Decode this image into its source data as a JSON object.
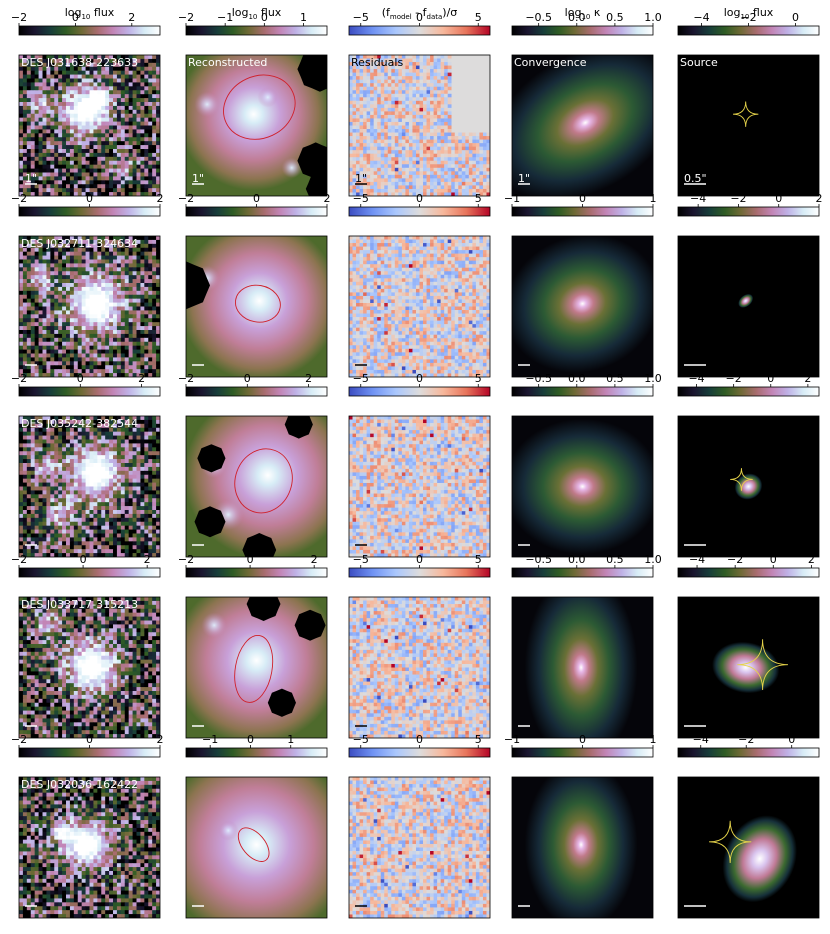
{
  "figure": {
    "column_titles": [
      "log₁₀ flux",
      "log₁₀ flux",
      "(fₘₒᵈₑₗ - fᵈₐₜₐ)/σ",
      "log₁₀ κ",
      "log₁₀ flux"
    ],
    "column_title_parts": [
      {
        "main": "log",
        "sub": "10",
        "tail": " flux"
      },
      {
        "main": "log",
        "sub": "10",
        "tail": " flux"
      },
      {
        "main": "(f",
        "sub": "model",
        "mid": " - f",
        "sub2": "data",
        "tail": ")/σ"
      },
      {
        "main": "log",
        "sub": "10",
        "tail": " κ"
      },
      {
        "main": "log",
        "sub": "10",
        "tail": " flux"
      }
    ],
    "panel_labels": [
      "Reconstructed",
      "Residuals",
      "Convergence",
      "Source"
    ],
    "scale_labels": [
      "1\"",
      "1\"",
      "1\"",
      "1\"",
      "0.5\""
    ],
    "rows": [
      {
        "name": "DES J031638-223633",
        "colorbars": [
          {
            "ticks": [
              "−2",
              "0",
              "2"
            ],
            "min": -2,
            "max": 3,
            "vals": [
              -2,
              0,
              2
            ]
          },
          {
            "ticks": [
              "−2",
              "−1",
              "0",
              "1"
            ],
            "min": -2,
            "max": 1.6,
            "vals": [
              -2,
              -1,
              0,
              1
            ]
          },
          {
            "ticks": [
              "−5",
              "0",
              "5"
            ],
            "min": -6,
            "max": 6,
            "vals": [
              -5,
              0,
              5
            ]
          },
          {
            "ticks": [
              "−0.5",
              "0.0",
              "0.5",
              "1.0"
            ],
            "min": -0.85,
            "max": 1,
            "vals": [
              -0.5,
              0,
              0.5,
              1
            ]
          },
          {
            "ticks": [
              "−4",
              "−2",
              "0"
            ],
            "min": -5,
            "max": 1,
            "vals": [
              -4,
              -2,
              0
            ]
          }
        ]
      },
      {
        "name": "DES J032711-324634",
        "colorbars": [
          {
            "ticks": [
              "−2",
              "0",
              "2"
            ],
            "min": -2,
            "max": 2,
            "vals": [
              -2,
              0,
              2
            ]
          },
          {
            "ticks": [
              "−2",
              "0",
              "2"
            ],
            "min": -2,
            "max": 2,
            "vals": [
              -2,
              0,
              2
            ]
          },
          {
            "ticks": [
              "−5",
              "0",
              "5"
            ],
            "min": -6,
            "max": 6,
            "vals": [
              -5,
              0,
              5
            ]
          },
          {
            "ticks": [
              "−1",
              "0",
              "1"
            ],
            "min": -1,
            "max": 1,
            "vals": [
              -1,
              0,
              1
            ]
          },
          {
            "ticks": [
              "−4",
              "−2",
              "0",
              "2"
            ],
            "min": -5,
            "max": 2,
            "vals": [
              -4,
              -2,
              0,
              2
            ]
          }
        ]
      },
      {
        "name": "DES J035242-382544",
        "colorbars": [
          {
            "ticks": [
              "−2",
              "0",
              "2"
            ],
            "min": -2,
            "max": 2.6,
            "vals": [
              -2,
              0,
              2
            ]
          },
          {
            "ticks": [
              "−2",
              "0",
              "2"
            ],
            "min": -2,
            "max": 2.6,
            "vals": [
              -2,
              0,
              2
            ]
          },
          {
            "ticks": [
              "−5",
              "0",
              "5"
            ],
            "min": -6,
            "max": 6,
            "vals": [
              -5,
              0,
              5
            ]
          },
          {
            "ticks": [
              "−0.5",
              "0.0",
              "0.5",
              "1.0"
            ],
            "min": -0.85,
            "max": 1,
            "vals": [
              -0.5,
              0,
              0.5,
              1
            ]
          },
          {
            "ticks": [
              "−4",
              "−2",
              "0",
              "2"
            ],
            "min": -5,
            "max": 2.6,
            "vals": [
              -4,
              -2,
              0,
              2
            ]
          }
        ]
      },
      {
        "name": "DES J033717-315213",
        "colorbars": [
          {
            "ticks": [
              "−2",
              "0",
              "2"
            ],
            "min": -2,
            "max": 2.4,
            "vals": [
              -2,
              0,
              2
            ]
          },
          {
            "ticks": [
              "−2",
              "0",
              "2"
            ],
            "min": -2,
            "max": 2.4,
            "vals": [
              -2,
              0,
              2
            ]
          },
          {
            "ticks": [
              "−5",
              "0",
              "5"
            ],
            "min": -6,
            "max": 6,
            "vals": [
              -5,
              0,
              5
            ]
          },
          {
            "ticks": [
              "−0.5",
              "0.0",
              "0.5",
              "1.0"
            ],
            "min": -0.85,
            "max": 1,
            "vals": [
              -0.5,
              0,
              0.5,
              1
            ]
          },
          {
            "ticks": [
              "−4",
              "−2",
              "0",
              "2"
            ],
            "min": -5,
            "max": 2.4,
            "vals": [
              -4,
              -2,
              0,
              2
            ]
          }
        ]
      },
      {
        "name": "DES J032036-162422",
        "colorbars": [
          {
            "ticks": [
              "−2",
              "0",
              "2"
            ],
            "min": -2,
            "max": 2,
            "vals": [
              -2,
              0,
              2
            ]
          },
          {
            "ticks": [
              "−1",
              "0",
              "1"
            ],
            "min": -1.6,
            "max": 1.9,
            "vals": [
              -1,
              0,
              1
            ]
          },
          {
            "ticks": [
              "−5",
              "0",
              "5"
            ],
            "min": -6,
            "max": 6,
            "vals": [
              -5,
              0,
              5
            ]
          },
          {
            "ticks": [
              "−1",
              "0",
              "1"
            ],
            "min": -1,
            "max": 1,
            "vals": [
              -1,
              0,
              1
            ]
          },
          {
            "ticks": [
              "−4",
              "−2",
              "0"
            ],
            "min": -5,
            "max": 1.2,
            "vals": [
              -4,
              -2,
              0
            ]
          }
        ]
      }
    ],
    "colormaps": {
      "cubehelix": [
        "#000000",
        "#1a1530",
        "#173d3a",
        "#2f5c24",
        "#6e6a35",
        "#a86c6e",
        "#c285b6",
        "#bfb1e6",
        "#d7ecf6",
        "#ffffff"
      ],
      "coolwarm": [
        "#3b4cc0",
        "#6f92f3",
        "#aac7fd",
        "#dddcdc",
        "#f7b89c",
        "#e7745b",
        "#b40426"
      ],
      "yellow": "#e5d34a",
      "red": "#d0202a"
    }
  }
}
